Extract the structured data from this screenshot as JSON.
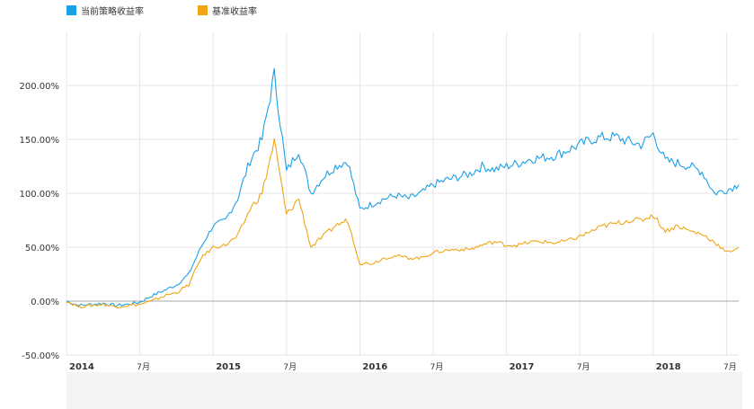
{
  "chart_data": {
    "type": "line",
    "title": "",
    "xlabel": "",
    "ylabel": "",
    "x_range": [
      "2014-01",
      "2018-08"
    ],
    "ylim": [
      -50,
      230
    ],
    "grid": true,
    "legend_position": "top-left",
    "y_ticks": [
      {
        "value": 200,
        "label": "200.00%"
      },
      {
        "value": 150,
        "label": "150.00%"
      },
      {
        "value": 100,
        "label": "100.00%"
      },
      {
        "value": 50,
        "label": "50.00%"
      },
      {
        "value": 0,
        "label": "0.00%"
      },
      {
        "value": -50,
        "label": "-50.00%"
      }
    ],
    "x_ticks": [
      {
        "value": "2014-01",
        "label": "2014",
        "major": true
      },
      {
        "value": "2014-07",
        "label": "7月",
        "major": false
      },
      {
        "value": "2015-01",
        "label": "2015",
        "major": true
      },
      {
        "value": "2015-07",
        "label": "7月",
        "major": false
      },
      {
        "value": "2016-01",
        "label": "2016",
        "major": true
      },
      {
        "value": "2016-07",
        "label": "7月",
        "major": false
      },
      {
        "value": "2017-01",
        "label": "2017",
        "major": true
      },
      {
        "value": "2017-07",
        "label": "7月",
        "major": false
      },
      {
        "value": "2018-01",
        "label": "2018",
        "major": true
      },
      {
        "value": "2018-07",
        "label": "7月",
        "major": false
      }
    ],
    "series": [
      {
        "name": "当前策略收益率",
        "color": "#1aa0e6",
        "points": [
          [
            "2014-01",
            0
          ],
          [
            "2014-02",
            -4
          ],
          [
            "2014-03",
            -3
          ],
          [
            "2014-04",
            -2
          ],
          [
            "2014-05",
            -4
          ],
          [
            "2014-06",
            -3
          ],
          [
            "2014-07",
            -1
          ],
          [
            "2014-08",
            5
          ],
          [
            "2014-09",
            10
          ],
          [
            "2014-10",
            15
          ],
          [
            "2014-11",
            25
          ],
          [
            "2014-12",
            50
          ],
          [
            "2015-01",
            70
          ],
          [
            "2015-02",
            75
          ],
          [
            "2015-03",
            95
          ],
          [
            "2015-04",
            130
          ],
          [
            "2015-05",
            150
          ],
          [
            "2015-06",
            210
          ],
          [
            "2015-07",
            120
          ],
          [
            "2015-08",
            140
          ],
          [
            "2015-09",
            100
          ],
          [
            "2015-10",
            115
          ],
          [
            "2015-11",
            125
          ],
          [
            "2015-12",
            130
          ],
          [
            "2016-01",
            85
          ],
          [
            "2016-02",
            90
          ],
          [
            "2016-03",
            95
          ],
          [
            "2016-04",
            98
          ],
          [
            "2016-05",
            95
          ],
          [
            "2016-06",
            100
          ],
          [
            "2016-07",
            108
          ],
          [
            "2016-08",
            112
          ],
          [
            "2016-09",
            115
          ],
          [
            "2016-10",
            118
          ],
          [
            "2016-11",
            125
          ],
          [
            "2016-12",
            122
          ],
          [
            "2017-01",
            125
          ],
          [
            "2017-02",
            128
          ],
          [
            "2017-03",
            132
          ],
          [
            "2017-04",
            133
          ],
          [
            "2017-05",
            135
          ],
          [
            "2017-06",
            140
          ],
          [
            "2017-07",
            145
          ],
          [
            "2017-08",
            150
          ],
          [
            "2017-09",
            152
          ],
          [
            "2017-10",
            152
          ],
          [
            "2017-11",
            148
          ],
          [
            "2017-12",
            145
          ],
          [
            "2018-01",
            155
          ],
          [
            "2018-02",
            130
          ],
          [
            "2018-03",
            128
          ],
          [
            "2018-04",
            125
          ],
          [
            "2018-05",
            120
          ],
          [
            "2018-06",
            100
          ],
          [
            "2018-07",
            103
          ],
          [
            "2018-08",
            108
          ]
        ]
      },
      {
        "name": "基准收益率",
        "color": "#f0a513",
        "points": [
          [
            "2014-01",
            0
          ],
          [
            "2014-02",
            -5
          ],
          [
            "2014-03",
            -4
          ],
          [
            "2014-04",
            -3
          ],
          [
            "2014-05",
            -5
          ],
          [
            "2014-06",
            -4
          ],
          [
            "2014-07",
            -3
          ],
          [
            "2014-08",
            0
          ],
          [
            "2014-09",
            5
          ],
          [
            "2014-10",
            8
          ],
          [
            "2014-11",
            15
          ],
          [
            "2014-12",
            40
          ],
          [
            "2015-01",
            50
          ],
          [
            "2015-02",
            52
          ],
          [
            "2015-03",
            60
          ],
          [
            "2015-04",
            85
          ],
          [
            "2015-05",
            100
          ],
          [
            "2015-06",
            148
          ],
          [
            "2015-07",
            80
          ],
          [
            "2015-08",
            95
          ],
          [
            "2015-09",
            50
          ],
          [
            "2015-10",
            60
          ],
          [
            "2015-11",
            70
          ],
          [
            "2015-12",
            75
          ],
          [
            "2016-01",
            35
          ],
          [
            "2016-02",
            35
          ],
          [
            "2016-03",
            40
          ],
          [
            "2016-04",
            42
          ],
          [
            "2016-05",
            40
          ],
          [
            "2016-06",
            40
          ],
          [
            "2016-07",
            45
          ],
          [
            "2016-08",
            47
          ],
          [
            "2016-09",
            48
          ],
          [
            "2016-10",
            48
          ],
          [
            "2016-11",
            52
          ],
          [
            "2016-12",
            55
          ],
          [
            "2017-01",
            52
          ],
          [
            "2017-02",
            52
          ],
          [
            "2017-03",
            55
          ],
          [
            "2017-04",
            55
          ],
          [
            "2017-05",
            54
          ],
          [
            "2017-06",
            56
          ],
          [
            "2017-07",
            60
          ],
          [
            "2017-08",
            65
          ],
          [
            "2017-09",
            70
          ],
          [
            "2017-10",
            72
          ],
          [
            "2017-11",
            75
          ],
          [
            "2017-12",
            75
          ],
          [
            "2018-01",
            80
          ],
          [
            "2018-02",
            65
          ],
          [
            "2018-03",
            70
          ],
          [
            "2018-04",
            65
          ],
          [
            "2018-05",
            62
          ],
          [
            "2018-06",
            55
          ],
          [
            "2018-07",
            45
          ],
          [
            "2018-08",
            50
          ]
        ]
      }
    ]
  }
}
